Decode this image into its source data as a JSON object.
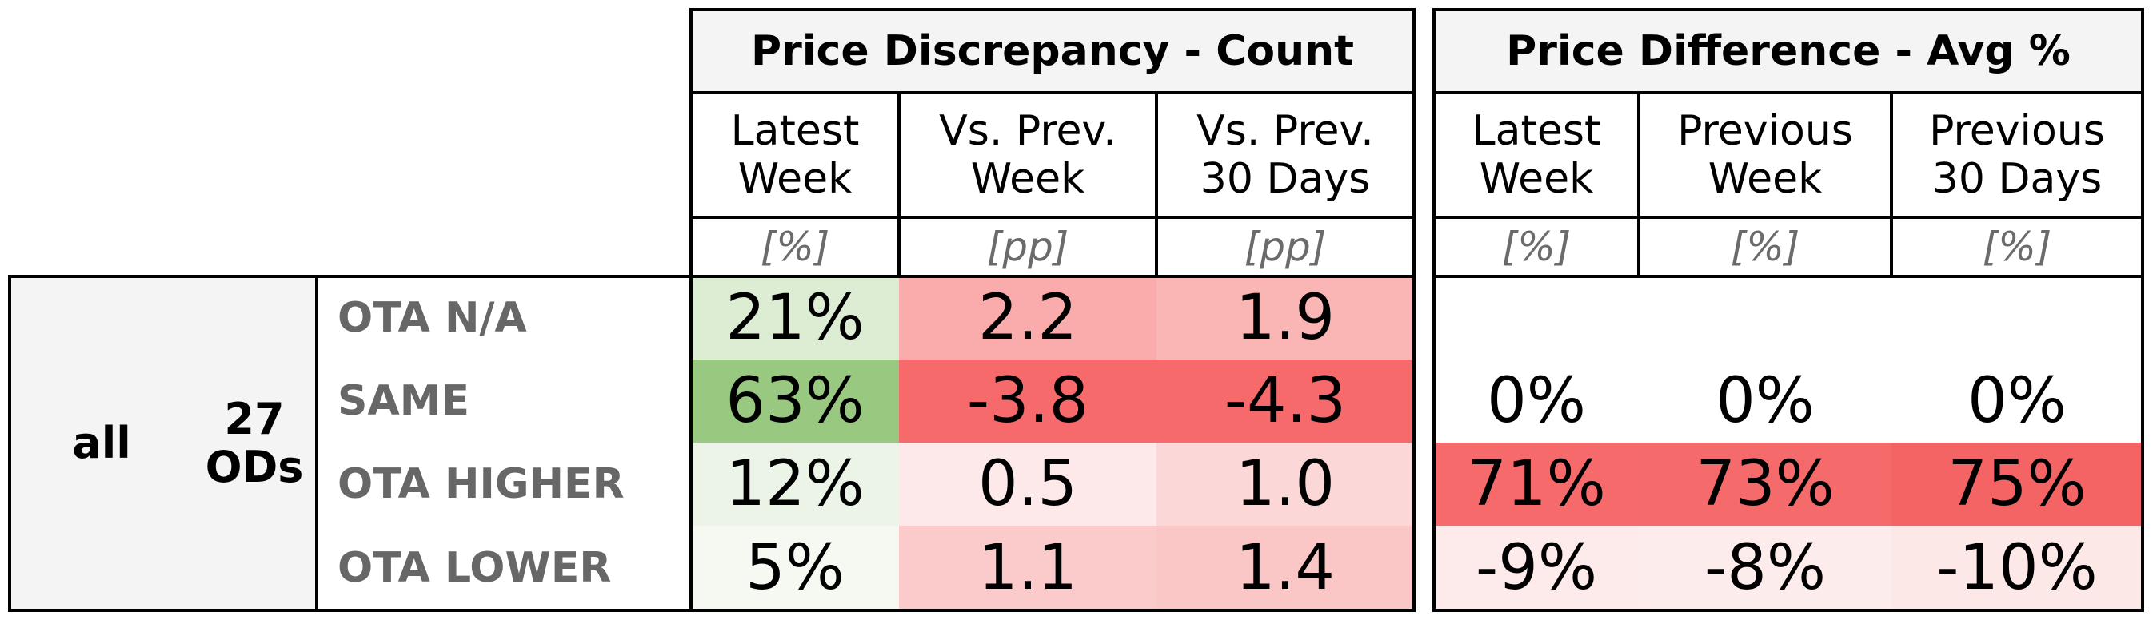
{
  "chart_data": {
    "type": "table",
    "group": {
      "segment": "all",
      "ods_count": "27",
      "ods_label": "ODs"
    },
    "row_labels": [
      "OTA N/A",
      "SAME",
      "OTA HIGHER",
      "OTA LOWER"
    ],
    "sections": [
      {
        "title": "Price Discrepancy - Count",
        "columns": [
          {
            "header_line1": "Latest",
            "header_line2": "Week",
            "unit": "[%]",
            "display": [
              "21%",
              "63%",
              "12%",
              "5%"
            ],
            "values": [
              21,
              63,
              12,
              5
            ],
            "colors": [
              "#dcedd4",
              "#99c981",
              "#ebf4e6",
              "#f5f9f2"
            ]
          },
          {
            "header_line1": "Vs. Prev.",
            "header_line2": "Week",
            "unit": "[pp]",
            "display": [
              "2.2",
              "-3.8",
              "0.5",
              "1.1"
            ],
            "values": [
              2.2,
              -3.8,
              0.5,
              1.1
            ],
            "colors": [
              "#faabab",
              "#f66a6b",
              "#fde9e9",
              "#fbcbcb"
            ]
          },
          {
            "header_line1": "Vs. Prev.",
            "header_line2": "30 Days",
            "unit": "[pp]",
            "display": [
              "1.9",
              "-4.3",
              "1.0",
              "1.4"
            ],
            "values": [
              1.9,
              -4.3,
              1.0,
              1.4
            ],
            "colors": [
              "#fab5b5",
              "#f66a6b",
              "#fcd7d7",
              "#fbc6c6"
            ]
          }
        ]
      },
      {
        "title": "Price Difference - Avg %",
        "columns": [
          {
            "header_line1": "Latest",
            "header_line2": "Week",
            "unit": "[%]",
            "display": [
              "",
              "0%",
              "71%",
              "-9%"
            ],
            "values": [
              null,
              0,
              71,
              -9
            ],
            "colors": [
              "#ffffff",
              "#ffffff",
              "#f66a6b",
              "#fdeaea"
            ]
          },
          {
            "header_line1": "Previous",
            "header_line2": "Week",
            "unit": "[%]",
            "display": [
              "",
              "0%",
              "73%",
              "-8%"
            ],
            "values": [
              null,
              0,
              73,
              -8
            ],
            "colors": [
              "#ffffff",
              "#ffffff",
              "#f56a6b",
              "#fdecec"
            ]
          },
          {
            "header_line1": "Previous",
            "header_line2": "30 Days",
            "unit": "[%]",
            "display": [
              "",
              "0%",
              "75%",
              "-10%"
            ],
            "values": [
              null,
              0,
              75,
              -10
            ],
            "colors": [
              "#ffffff",
              "#ffffff",
              "#f56465",
              "#fde8e8"
            ]
          }
        ]
      }
    ]
  }
}
